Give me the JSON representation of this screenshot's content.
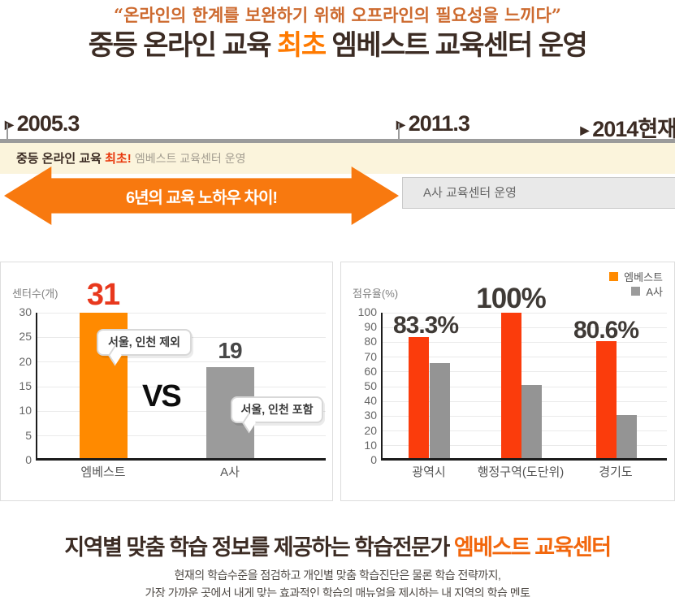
{
  "header": {
    "quote": "“온라인의 한계를 보완하기 위해 오프라인의 필요성을 느끼다”",
    "title": {
      "prefix": "중등 온라인 교육 ",
      "highlight": "최초",
      "suffix": " 엠베스트 교육센터 운영"
    }
  },
  "timeline": {
    "markers": [
      {
        "label": "2005.3"
      },
      {
        "label": "2011.3"
      },
      {
        "label": "2014현재"
      }
    ],
    "marker_glyph": "▶",
    "band": {
      "bold": "중등 온라인 교육 ",
      "highlight": "최초! ",
      "rest": "엠베스트 교육센터 운영"
    },
    "arrow_label": "6년의 교육 노하우 차이!",
    "competitor_label": "A사 교육센터 운영"
  },
  "chart_data": [
    {
      "type": "bar",
      "ylabel": "센터수(개)",
      "categories": [
        "엠베스트",
        "A사"
      ],
      "values": [
        31,
        19
      ],
      "value_labels": [
        "31",
        "19"
      ],
      "value_label_colors": [
        "#e8381d",
        "#474747"
      ],
      "bar_colors": [
        "#ff8a00",
        "#9b9b9b"
      ],
      "ylim": [
        0,
        30
      ],
      "yticks": [
        0,
        5,
        10,
        15,
        20,
        25,
        30
      ],
      "grid": true,
      "vs_label": "VS",
      "annotations": [
        {
          "text": "서울, 인천 제외",
          "target": "엠베스트"
        },
        {
          "text": "서울, 인천 포함",
          "target": "A사"
        }
      ]
    },
    {
      "type": "bar",
      "ylabel": "점유율(%)",
      "categories": [
        "광역시",
        "행정구역(도단위)",
        "경기도"
      ],
      "series": [
        {
          "name": "엠베스트",
          "color": "#fb3c0c",
          "values": [
            83.3,
            100,
            80.6
          ],
          "value_labels": [
            "83.3%",
            "100%",
            "80.6%"
          ]
        },
        {
          "name": "A사",
          "color": "#949494",
          "values": [
            66,
            51,
            31
          ]
        }
      ],
      "ylim": [
        0,
        100
      ],
      "yticks": [
        0,
        10,
        20,
        30,
        40,
        50,
        60,
        70,
        80,
        90,
        100
      ],
      "grid": true,
      "legend": {
        "position": "top-right",
        "entries": [
          {
            "label": "엠베스트",
            "swatch": "#ff8a00"
          },
          {
            "label": "A사",
            "swatch": "#9b9b9b"
          }
        ]
      }
    }
  ],
  "footer": {
    "title": {
      "prefix": "지역별 맞춤 학습 정보를 제공하는 학습전문가 ",
      "highlight": "엠베스트 교육센터"
    },
    "line1": "현재의 학습수준을 점검하고 개인별 맞춤 학습진단은 물론 학습 전략까지,",
    "line2": "가장 가까운 곳에서 내게 맞는 효과적인 학습의 매뉴얼을 제시하는 내 지역의 학습 멘토"
  },
  "colors": {
    "accent_orange": "#f8790f",
    "quote_orange": "#cd6a2f",
    "title_dark": "#3c2c24",
    "highlight_red": "#e8380d",
    "beige_bg": "#fbf4dc",
    "competitor_bg": "#e9e9e9"
  }
}
